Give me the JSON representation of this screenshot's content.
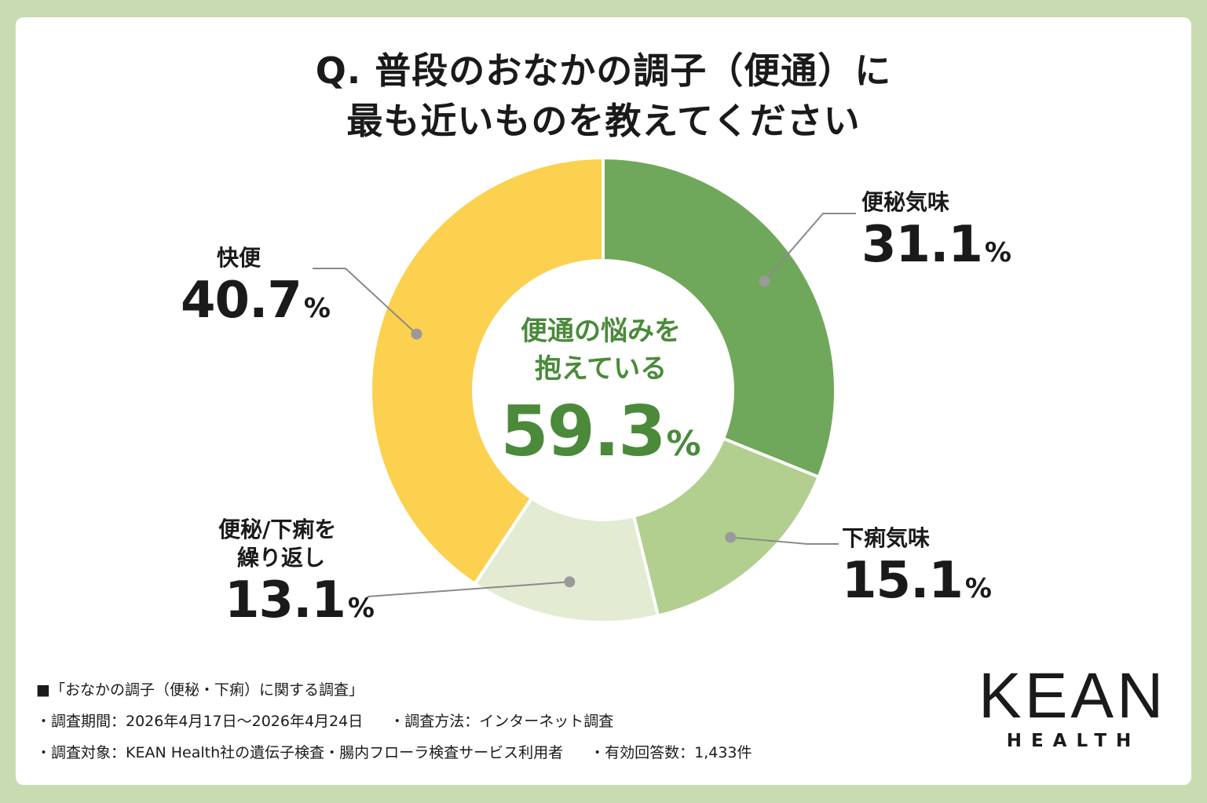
{
  "title": {
    "line1": "Q. 普段のおなかの調子（便通）に",
    "line2": "最も近いものを教えてください"
  },
  "chart_data": {
    "type": "pie",
    "subtype": "donut",
    "title": "Q. 普段のおなかの調子（便通）に最も近いものを教えてください",
    "categories": [
      "便秘気味",
      "下痢気味",
      "便秘/下痢を繰り返し",
      "快便"
    ],
    "values": [
      31.1,
      15.1,
      13.1,
      40.7
    ],
    "unit": "%",
    "colors": [
      "#6fa85a",
      "#b2cf8f",
      "#e3ecd2",
      "#fcd14f"
    ],
    "center_label": {
      "line1": "便通の悩みを",
      "line2": "抱えている",
      "value": "59.3",
      "unit": "%"
    }
  },
  "labels": {
    "constipation": {
      "name": "便秘気味",
      "value": "31.1",
      "unit": "%"
    },
    "diarrhea": {
      "name": "下痢気味",
      "value": "15.1",
      "unit": "%"
    },
    "alternating": {
      "name1": "便秘/下痢を",
      "name2": "繰り返し",
      "value": "13.1",
      "unit": "%"
    },
    "normal": {
      "name": "快便",
      "value": "40.7",
      "unit": "%"
    }
  },
  "footer": {
    "survey_name": "■「おなかの調子（便秘・下痢）に関する調査」",
    "period": "・調査期間：2026年4月17日〜2026年4月24日",
    "method": "・調査方法：インターネット調査",
    "target": "・調査対象：KEAN Health社の遺伝子検査・腸内フローラ検査サービス利用者",
    "responses": "・有効回答数：1,433件"
  },
  "logo": {
    "word": "KEAN",
    "sub": "HEALTH"
  }
}
